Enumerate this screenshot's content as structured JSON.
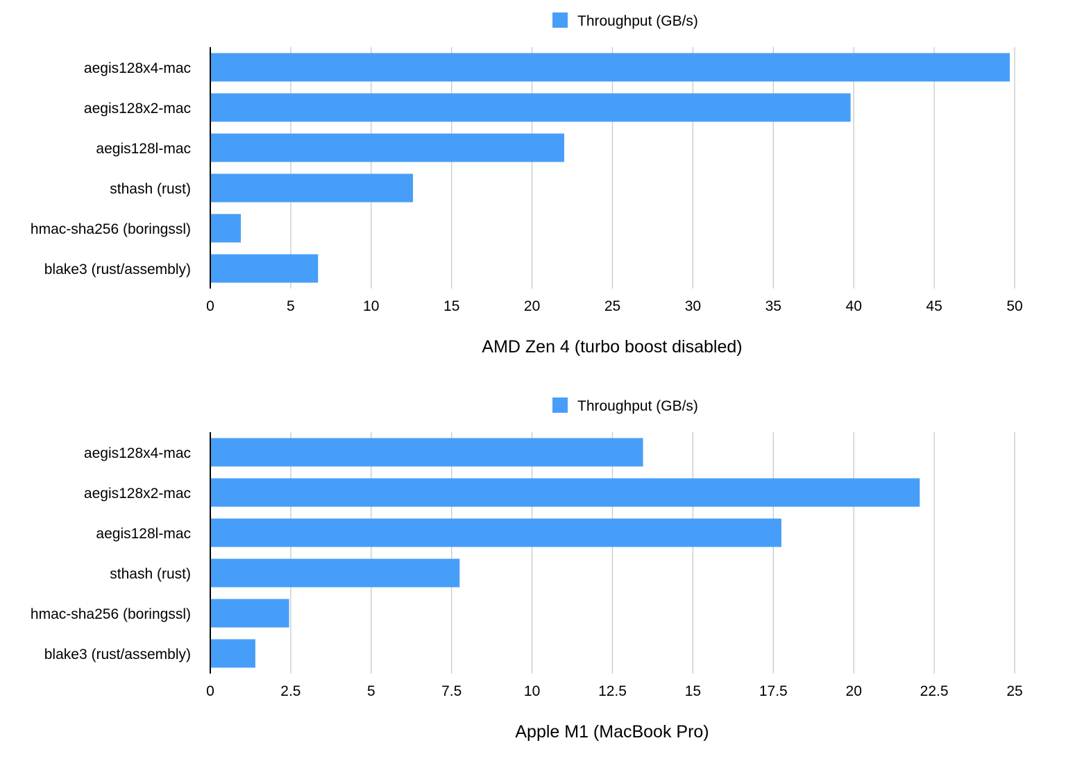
{
  "chart_data": [
    {
      "type": "bar",
      "orientation": "horizontal",
      "categories": [
        "aegis128x4-mac",
        "aegis128x2-mac",
        "aegis128l-mac",
        "sthash (rust)",
        "hmac-sha256 (boringssl)",
        "blake3 (rust/assembly)"
      ],
      "series": [
        {
          "name": "Throughput (GB/s)",
          "values": [
            49.7,
            39.8,
            22.0,
            12.6,
            1.9,
            6.7
          ]
        }
      ],
      "xlabel": "AMD Zen 4 (turbo boost disabled)",
      "xlim": [
        0,
        50
      ],
      "xticks": [
        "0",
        "5",
        "10",
        "15",
        "20",
        "25",
        "30",
        "35",
        "40",
        "45",
        "50"
      ],
      "grid": "vertical",
      "legend_position": "top",
      "bar_color": "#479ef8"
    },
    {
      "type": "bar",
      "orientation": "horizontal",
      "categories": [
        "aegis128x4-mac",
        "aegis128x2-mac",
        "aegis128l-mac",
        "sthash (rust)",
        "hmac-sha256 (boringssl)",
        "blake3 (rust/assembly)"
      ],
      "series": [
        {
          "name": "Throughput (GB/s)",
          "values": [
            13.45,
            22.05,
            17.75,
            7.75,
            2.45,
            1.4
          ]
        }
      ],
      "xlabel": "Apple M1 (MacBook Pro)",
      "xlim": [
        0,
        25
      ],
      "xticks": [
        "0",
        "2.5",
        "5",
        "7.5",
        "10",
        "12.5",
        "15",
        "17.5",
        "20",
        "22.5",
        "25"
      ],
      "grid": "vertical",
      "legend_position": "top",
      "bar_color": "#479ef8"
    }
  ]
}
